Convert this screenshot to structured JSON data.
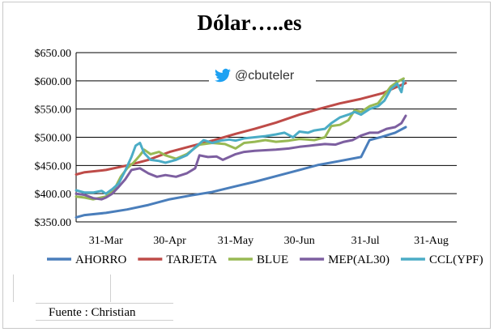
{
  "chart_data": {
    "type": "line",
    "title": "Dólar…..es",
    "watermark": {
      "icon": "twitter-bird-icon",
      "handle": "@cbuteler",
      "icon_color": "#1da1f2"
    },
    "y_ticks": [
      "$350.00",
      "$400.00",
      "$450.00",
      "$500.00",
      "$550.00",
      "$600.00",
      "$650.00"
    ],
    "ylim": [
      350,
      650
    ],
    "x_ticks": [
      {
        "label": "31-Mar",
        "t": 0
      },
      {
        "label": "30-Apr",
        "t": 30
      },
      {
        "label": "31-May",
        "t": 61
      },
      {
        "label": "30-Jun",
        "t": 91
      },
      {
        "label": "31-Jul",
        "t": 122
      },
      {
        "label": "31-Aug",
        "t": 153
      }
    ],
    "xlim": [
      -14,
      165
    ],
    "grid": true,
    "legend_position": "bottom",
    "series": [
      {
        "name": "AHORRO",
        "color": "#4a7ebb",
        "points": [
          [
            -14,
            358
          ],
          [
            -10,
            362
          ],
          [
            0,
            366
          ],
          [
            10,
            372
          ],
          [
            20,
            380
          ],
          [
            30,
            390
          ],
          [
            40,
            397
          ],
          [
            50,
            403
          ],
          [
            61,
            413
          ],
          [
            70,
            421
          ],
          [
            80,
            431
          ],
          [
            91,
            442
          ],
          [
            100,
            451
          ],
          [
            110,
            458
          ],
          [
            120,
            465
          ],
          [
            124,
            495
          ],
          [
            130,
            501
          ],
          [
            136,
            508
          ],
          [
            141,
            518
          ]
        ]
      },
      {
        "name": "TARJETA",
        "color": "#be4b48",
        "points": [
          [
            -14,
            434
          ],
          [
            -10,
            438
          ],
          [
            0,
            442
          ],
          [
            10,
            450
          ],
          [
            20,
            460
          ],
          [
            30,
            474
          ],
          [
            40,
            484
          ],
          [
            50,
            494
          ],
          [
            61,
            506
          ],
          [
            70,
            515
          ],
          [
            80,
            526
          ],
          [
            91,
            540
          ],
          [
            100,
            550
          ],
          [
            110,
            560
          ],
          [
            120,
            568
          ],
          [
            130,
            578
          ],
          [
            136,
            588
          ],
          [
            141,
            596
          ]
        ]
      },
      {
        "name": "BLUE",
        "color": "#98b954",
        "points": [
          [
            -14,
            395
          ],
          [
            -10,
            393
          ],
          [
            -6,
            390
          ],
          [
            0,
            395
          ],
          [
            4,
            408
          ],
          [
            7,
            430
          ],
          [
            10,
            445
          ],
          [
            13,
            455
          ],
          [
            16,
            468
          ],
          [
            18,
            478
          ],
          [
            21,
            470
          ],
          [
            25,
            474
          ],
          [
            28,
            468
          ],
          [
            33,
            462
          ],
          [
            38,
            470
          ],
          [
            44,
            487
          ],
          [
            50,
            490
          ],
          [
            56,
            488
          ],
          [
            61,
            480
          ],
          [
            65,
            490
          ],
          [
            70,
            492
          ],
          [
            75,
            495
          ],
          [
            80,
            492
          ],
          [
            86,
            494
          ],
          [
            91,
            497
          ],
          [
            98,
            495
          ],
          [
            103,
            500
          ],
          [
            106,
            520
          ],
          [
            110,
            522
          ],
          [
            114,
            530
          ],
          [
            117,
            548
          ],
          [
            120,
            545
          ],
          [
            124,
            555
          ],
          [
            128,
            560
          ],
          [
            131,
            575
          ],
          [
            134,
            590
          ],
          [
            137,
            598
          ],
          [
            140,
            604
          ]
        ]
      },
      {
        "name": "MEP(AL30)",
        "color": "#7d5fa0",
        "points": [
          [
            -14,
            400
          ],
          [
            -10,
            398
          ],
          [
            -6,
            392
          ],
          [
            -2,
            390
          ],
          [
            0,
            393
          ],
          [
            3,
            400
          ],
          [
            6,
            412
          ],
          [
            9,
            425
          ],
          [
            12,
            442
          ],
          [
            16,
            445
          ],
          [
            20,
            436
          ],
          [
            24,
            430
          ],
          [
            28,
            433
          ],
          [
            33,
            430
          ],
          [
            38,
            436
          ],
          [
            42,
            445
          ],
          [
            44,
            468
          ],
          [
            48,
            465
          ],
          [
            52,
            466
          ],
          [
            55,
            460
          ],
          [
            61,
            470
          ],
          [
            65,
            474
          ],
          [
            70,
            476
          ],
          [
            75,
            477
          ],
          [
            80,
            478
          ],
          [
            86,
            480
          ],
          [
            91,
            483
          ],
          [
            98,
            486
          ],
          [
            103,
            488
          ],
          [
            108,
            487
          ],
          [
            112,
            492
          ],
          [
            116,
            495
          ],
          [
            120,
            503
          ],
          [
            124,
            508
          ],
          [
            128,
            508
          ],
          [
            132,
            515
          ],
          [
            136,
            518
          ],
          [
            139,
            525
          ],
          [
            141,
            538
          ]
        ]
      },
      {
        "name": "CCL(YPF)",
        "color": "#4bacc6",
        "points": [
          [
            -14,
            406
          ],
          [
            -10,
            402
          ],
          [
            -6,
            402
          ],
          [
            -2,
            405
          ],
          [
            0,
            400
          ],
          [
            3,
            408
          ],
          [
            6,
            418
          ],
          [
            9,
            440
          ],
          [
            12,
            465
          ],
          [
            14,
            485
          ],
          [
            16,
            490
          ],
          [
            18,
            472
          ],
          [
            21,
            460
          ],
          [
            25,
            458
          ],
          [
            28,
            455
          ],
          [
            33,
            460
          ],
          [
            38,
            468
          ],
          [
            42,
            482
          ],
          [
            46,
            495
          ],
          [
            50,
            490
          ],
          [
            54,
            494
          ],
          [
            58,
            496
          ],
          [
            61,
            494
          ],
          [
            65,
            498
          ],
          [
            70,
            500
          ],
          [
            75,
            502
          ],
          [
            80,
            505
          ],
          [
            84,
            508
          ],
          [
            88,
            500
          ],
          [
            91,
            510
          ],
          [
            95,
            508
          ],
          [
            98,
            512
          ],
          [
            103,
            515
          ],
          [
            106,
            525
          ],
          [
            110,
            535
          ],
          [
            114,
            540
          ],
          [
            117,
            545
          ],
          [
            120,
            540
          ],
          [
            124,
            550
          ],
          [
            128,
            555
          ],
          [
            131,
            565
          ],
          [
            134,
            585
          ],
          [
            137,
            595
          ],
          [
            139,
            580
          ],
          [
            140,
            600
          ]
        ]
      }
    ]
  },
  "source_label": "Fuente : Christian"
}
